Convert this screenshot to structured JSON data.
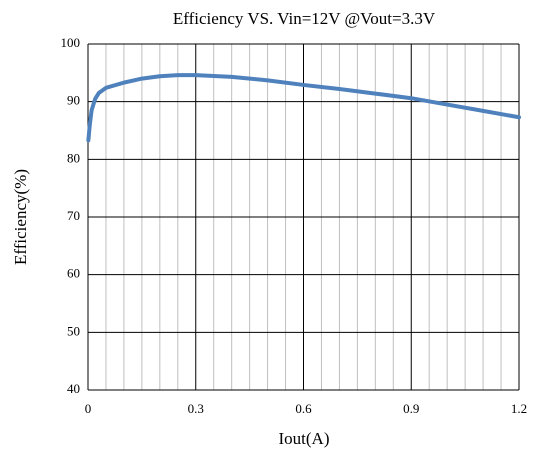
{
  "chart_data": {
    "type": "line",
    "title": "Efficiency VS. Vin=12V @Vout=3.3V",
    "x_label": "Iout(A)",
    "y_label": "Efficiency(%)",
    "x": [
      0.001,
      0.005,
      0.01,
      0.02,
      0.03,
      0.05,
      0.1,
      0.15,
      0.2,
      0.25,
      0.3,
      0.4,
      0.5,
      0.6,
      0.7,
      0.8,
      0.9,
      1.0,
      1.1,
      1.2
    ],
    "values": [
      83.3,
      86,
      88.5,
      90.5,
      91.5,
      92.4,
      93.3,
      94,
      94.4,
      94.6,
      94.6,
      94.3,
      93.7,
      92.9,
      92.2,
      91.4,
      90.6,
      89.5,
      88.4,
      87.3
    ],
    "color": "#4f81bd",
    "xlim": [
      0,
      1.2
    ],
    "ylim": [
      40,
      100
    ],
    "xticks": [
      0,
      0.3,
      0.6,
      0.9,
      1.2
    ],
    "xminorticks": [
      0.05,
      0.1,
      0.15,
      0.2,
      0.25,
      0.35,
      0.4,
      0.45,
      0.5,
      0.55,
      0.65,
      0.7,
      0.75,
      0.8,
      0.85,
      0.95,
      1.0,
      1.05,
      1.1,
      1.15
    ],
    "yticks": [
      40,
      50,
      60,
      70,
      80,
      90,
      100
    ],
    "grid": true
  }
}
